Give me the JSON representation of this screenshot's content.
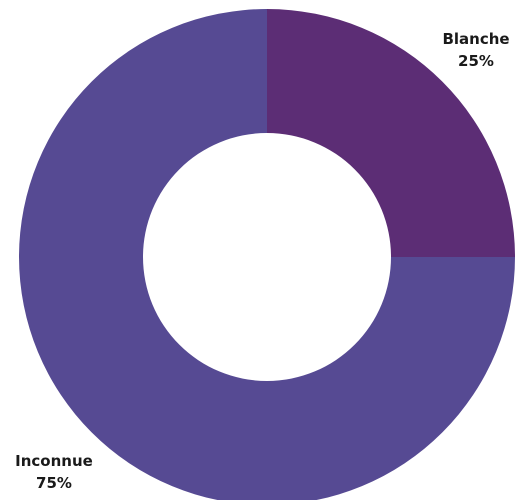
{
  "chart_data": {
    "type": "pie",
    "variant": "donut",
    "slices": [
      {
        "label": "Blanche",
        "value": 25,
        "display": "25%",
        "color": "#5c2d75"
      },
      {
        "label": "Inconnue",
        "value": 75,
        "display": "75%",
        "color": "#564a93"
      }
    ],
    "start": "top",
    "direction": "clockwise",
    "legend": "none"
  }
}
